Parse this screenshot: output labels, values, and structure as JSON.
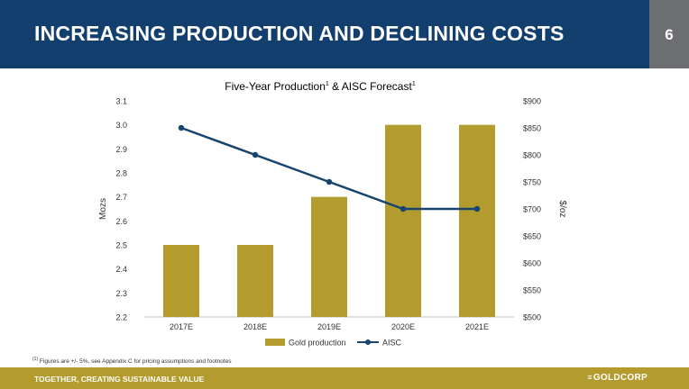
{
  "header": {
    "title": "INCREASING PRODUCTION AND DECLINING COSTS",
    "page_number": "6"
  },
  "chart_data": {
    "type": "bar",
    "title": "Five-Year Production",
    "title_sup1": "1",
    "title_mid": " & AISC Forecast",
    "title_sup2": "1",
    "categories": [
      "2017E",
      "2018E",
      "2019E",
      "2020E",
      "2021E"
    ],
    "series": [
      {
        "name": "Gold production",
        "type": "bar",
        "axis": "left",
        "values": [
          2.5,
          2.5,
          2.7,
          3.0,
          3.0
        ]
      },
      {
        "name": "AISC",
        "type": "line",
        "axis": "right",
        "values": [
          850,
          800,
          750,
          700,
          700
        ]
      }
    ],
    "ylabel": "Mozs",
    "ylabel_right": "$/oz",
    "ylim": [
      2.2,
      3.1
    ],
    "ylim_right": [
      500,
      900
    ],
    "yticks": [
      2.2,
      2.3,
      2.4,
      2.5,
      2.6,
      2.7,
      2.8,
      2.9,
      3.0,
      3.1
    ],
    "yticks_right": [
      "$500",
      "$550",
      "$600",
      "$650",
      "$700",
      "$750",
      "$800",
      "$850",
      "$900"
    ],
    "legend": "bottom",
    "colors": {
      "bar": "#b39b2e",
      "line": "#17446f"
    }
  },
  "footnote": {
    "marker": "(1)",
    "text": " Figures are +/- 5%, see Appendix C for pricing assumptions and footnotes"
  },
  "footer": {
    "tagline": "TOGETHER, CREATING SUSTAINABLE VALUE",
    "logo_text": "GOLDCORP"
  }
}
